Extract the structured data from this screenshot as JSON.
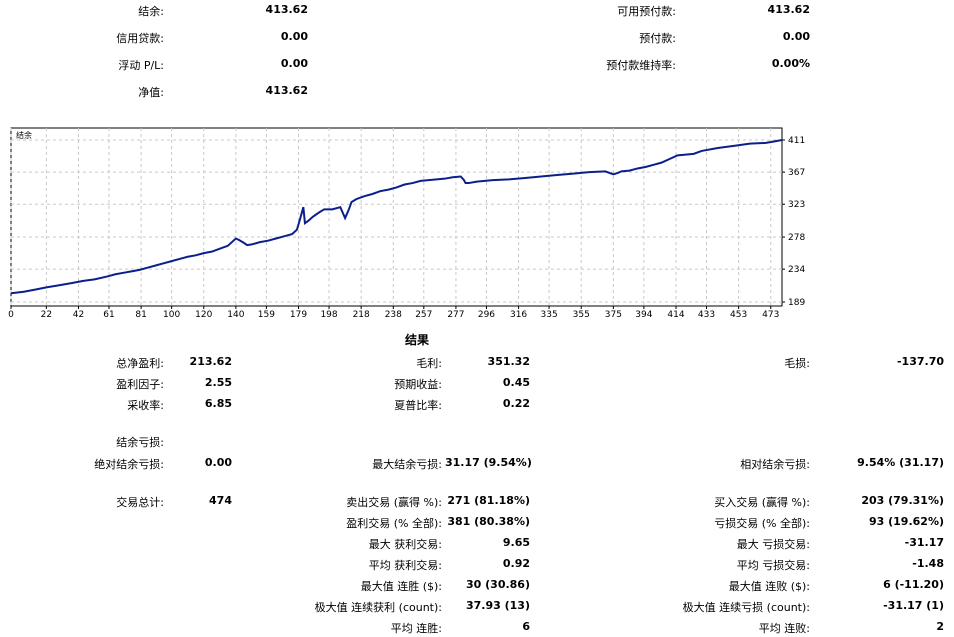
{
  "summary": {
    "balance_label": "结余:",
    "balance_value": "413.62",
    "credit_label": "信用贷款:",
    "credit_value": "0.00",
    "floating_label": "浮动 P/L:",
    "floating_value": "0.00",
    "equity_label": "净值:",
    "equity_value": "413.62",
    "free_margin_label": "可用预付款:",
    "free_margin_value": "413.62",
    "margin_label": "预付款:",
    "margin_value": "0.00",
    "margin_level_label": "预付款维持率:",
    "margin_level_value": "0.00%"
  },
  "chart_data": {
    "type": "line",
    "legend": "结余",
    "x_ticks": [
      "0",
      "22",
      "42",
      "61",
      "81",
      "100",
      "120",
      "140",
      "159",
      "179",
      "198",
      "218",
      "238",
      "257",
      "277",
      "296",
      "316",
      "335",
      "355",
      "375",
      "394",
      "414",
      "433",
      "453",
      "473"
    ],
    "y_ticks": [
      "411",
      "367",
      "323",
      "278",
      "234",
      "189"
    ],
    "xlim": [
      0,
      480
    ],
    "ylim": [
      189,
      411
    ],
    "line_color": "#0b1f8c",
    "grid": true,
    "series": [
      {
        "x": [
          0,
          8,
          15,
          22,
          30,
          38,
          45,
          52,
          60,
          65,
          70,
          75,
          80,
          85,
          90,
          95,
          100,
          105,
          110,
          115,
          120,
          125,
          130,
          135,
          138,
          140,
          142,
          145,
          147,
          150,
          155,
          160,
          165,
          170,
          175,
          178,
          180,
          182,
          183,
          185,
          188,
          192,
          195,
          200,
          205,
          208,
          210,
          212,
          215,
          220,
          225,
          230,
          235,
          240,
          245,
          250,
          255,
          260,
          265,
          270,
          275,
          280,
          282,
          283,
          285,
          290,
          295,
          300,
          310,
          320,
          330,
          340,
          350,
          360,
          370,
          375,
          378,
          380,
          385,
          390,
          395,
          400,
          405,
          410,
          415,
          420,
          425,
          430,
          440,
          450,
          460,
          470,
          475,
          480
        ],
        "y": [
          201,
          203,
          206,
          209,
          212,
          215,
          218,
          220,
          224,
          227,
          229,
          231,
          233,
          236,
          239,
          242,
          245,
          248,
          251,
          253,
          256,
          258,
          262,
          266,
          272,
          276,
          274,
          270,
          267,
          268,
          271,
          273,
          276,
          279,
          282,
          288,
          303,
          319,
          297,
          300,
          306,
          312,
          316,
          316,
          319,
          304,
          314,
          326,
          330,
          334,
          337,
          341,
          343,
          346,
          350,
          352,
          355,
          356,
          357,
          358,
          360,
          361,
          356,
          352,
          352,
          354,
          355,
          356,
          357,
          359,
          361,
          363,
          365,
          367,
          368,
          364,
          366,
          368,
          369,
          372,
          374,
          377,
          380,
          385,
          390,
          391,
          392,
          396,
          400,
          403,
          406,
          407,
          409,
          411
        ]
      }
    ]
  },
  "results": {
    "title": "结果",
    "rows": [
      {
        "l1": "总净盈利:",
        "v1": "213.62",
        "l2": "毛利:",
        "v2": "351.32",
        "l3": "毛损:",
        "v3": "-137.70"
      },
      {
        "l1": "盈利因子:",
        "v1": "2.55",
        "l2": "预期收益:",
        "v2": "0.45",
        "l3": "",
        "v3": ""
      },
      {
        "l1": "采收率:",
        "v1": "6.85",
        "l2": "夏普比率:",
        "v2": "0.22",
        "l3": "",
        "v3": ""
      },
      {
        "l1": "结余亏损:",
        "v1": "",
        "l2": "",
        "v2": "",
        "l3": "",
        "v3": ""
      },
      {
        "l1": "绝对结余亏损:",
        "v1": "0.00",
        "l2": "最大结余亏损:",
        "v2": "31.17 (9.54%)",
        "l3": "相对结余亏损:",
        "v3": "9.54% (31.17)"
      },
      {
        "l1": "交易总计:",
        "v1": "474",
        "l2": "卖出交易 (赢得 %):",
        "v2": "271 (81.18%)",
        "l3": "买入交易 (赢得 %):",
        "v3": "203 (79.31%)"
      },
      {
        "l1": "",
        "v1": "",
        "l2": "盈利交易 (% 全部):",
        "v2": "381 (80.38%)",
        "l3": "亏损交易 (% 全部):",
        "v3": "93 (19.62%)"
      },
      {
        "l1": "",
        "v1": "",
        "l2": "最大 获利交易:",
        "v2": "9.65",
        "l3": "最大 亏损交易:",
        "v3": "-31.17"
      },
      {
        "l1": "",
        "v1": "",
        "l2": "平均 获利交易:",
        "v2": "0.92",
        "l3": "平均 亏损交易:",
        "v3": "-1.48"
      },
      {
        "l1": "",
        "v1": "",
        "l2": "最大值 连胜 ($):",
        "v2": "30 (30.86)",
        "l3": "最大值 连败 ($):",
        "v3": "6 (-11.20)"
      },
      {
        "l1": "",
        "v1": "",
        "l2": "极大值 连续获利 (count):",
        "v2": "37.93 (13)",
        "l3": "极大值 连续亏损 (count):",
        "v3": "-31.17 (1)"
      },
      {
        "l1": "",
        "v1": "",
        "l2": "平均 连胜:",
        "v2": "6",
        "l3": "平均 连败:",
        "v3": "2"
      }
    ]
  }
}
